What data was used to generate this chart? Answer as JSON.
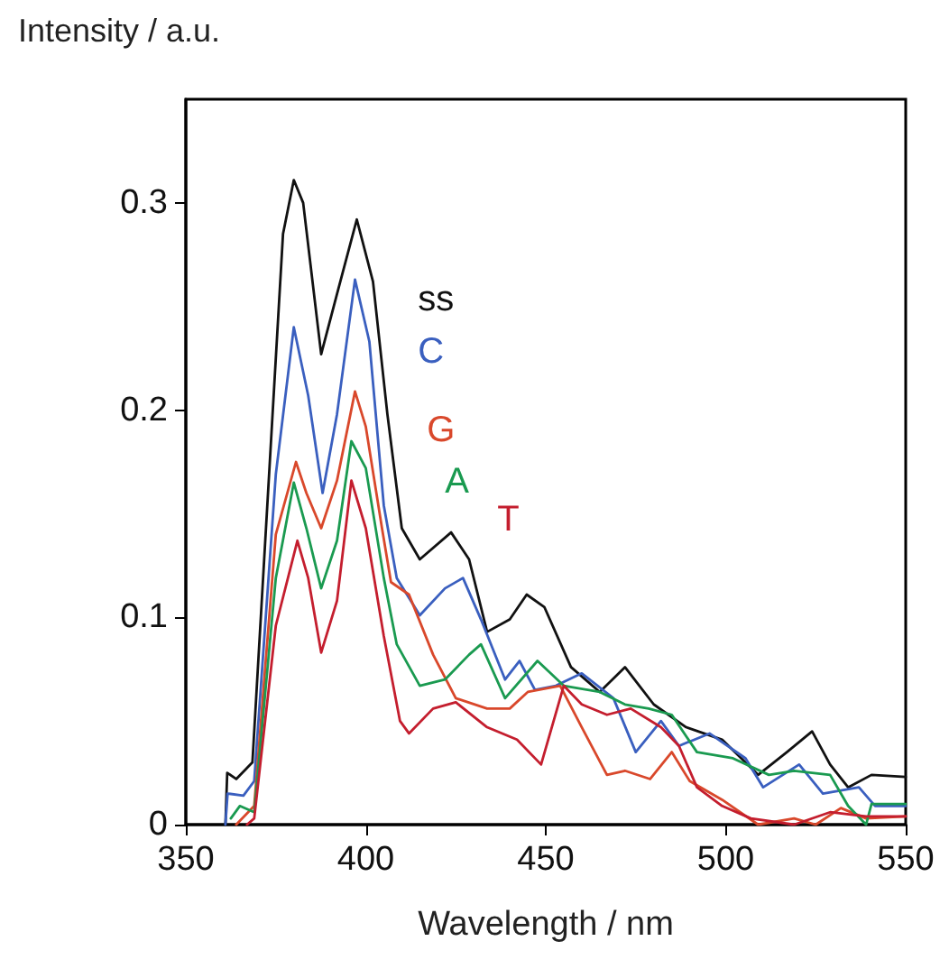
{
  "chart_data": {
    "type": "line",
    "xlabel": "Wavelength / nm",
    "ylabel": "Intensity / a.u.",
    "xlim": [
      350,
      550
    ],
    "xticks": [
      350,
      400,
      450,
      500,
      550
    ],
    "ylim": [
      0,
      0.35
    ],
    "yticks": [
      0,
      0.1,
      0.2,
      0.3
    ],
    "grid": false,
    "legend": false,
    "marker": "none",
    "line_style": "solid",
    "series": [
      {
        "name": "ss",
        "color": "#111111",
        "x": [
          361,
          361.5,
          364,
          368.5,
          373.6,
          377,
          380,
          382.6,
          387.6,
          392,
          397.5,
          402,
          406,
          410,
          415,
          423.7,
          428.7,
          433.7,
          440,
          444.7,
          449.6,
          457,
          465,
          472,
          480,
          489,
          499,
          509,
          517,
          524,
          529,
          534,
          540.5,
          550
        ],
        "values": [
          0,
          0.025,
          0.022,
          0.03,
          0.183,
          0.285,
          0.311,
          0.3,
          0.227,
          0.256,
          0.292,
          0.262,
          0.198,
          0.143,
          0.128,
          0.141,
          0.128,
          0.093,
          0.099,
          0.111,
          0.105,
          0.076,
          0.064,
          0.076,
          0.058,
          0.047,
          0.041,
          0.024,
          0.035,
          0.045,
          0.029,
          0.018,
          0.024,
          0.023
        ]
      },
      {
        "name": "C",
        "color": "#3a5fbf",
        "x": [
          361,
          361.6,
          366,
          369,
          375,
          380,
          384,
          388,
          392,
          397,
          401,
          405,
          408.6,
          415,
          422,
          427,
          432,
          438.7,
          442.7,
          447,
          452.8,
          460,
          468.8,
          475,
          482,
          487,
          495.5,
          505.5,
          510.4,
          520.4,
          527,
          537,
          541.5,
          550
        ],
        "values": [
          0,
          0.015,
          0.014,
          0.021,
          0.169,
          0.24,
          0.207,
          0.16,
          0.198,
          0.263,
          0.233,
          0.154,
          0.119,
          0.101,
          0.114,
          0.119,
          0.099,
          0.07,
          0.079,
          0.065,
          0.067,
          0.073,
          0.061,
          0.035,
          0.05,
          0.038,
          0.044,
          0.032,
          0.018,
          0.029,
          0.015,
          0.018,
          0.009,
          0.009
        ]
      },
      {
        "name": "G",
        "color": "#d9482b",
        "x": [
          364,
          369,
          375,
          380.6,
          383.5,
          387.6,
          392,
          397,
          400,
          404.5,
          407,
          412,
          418.7,
          425,
          433.7,
          440,
          445,
          454,
          460,
          467,
          472,
          479,
          485,
          490,
          499,
          509,
          519,
          525,
          532,
          539,
          550
        ],
        "values": [
          0,
          0.009,
          0.14,
          0.175,
          0.16,
          0.143,
          0.166,
          0.209,
          0.192,
          0.143,
          0.117,
          0.111,
          0.082,
          0.061,
          0.056,
          0.056,
          0.064,
          0.067,
          0.047,
          0.024,
          0.026,
          0.022,
          0.035,
          0.021,
          0.012,
          0,
          0.003,
          0,
          0.008,
          0.003,
          0.004
        ]
      },
      {
        "name": "A",
        "color": "#1a9a50",
        "x": [
          362.5,
          365,
          369,
          375,
          380,
          383.5,
          387.6,
          392,
          396,
          400,
          405,
          408.6,
          415,
          422,
          428.7,
          432,
          438.7,
          447.7,
          455,
          465,
          472,
          478.6,
          485,
          492,
          502,
          512,
          519,
          529,
          534,
          539,
          540.5,
          550
        ],
        "values": [
          0.003,
          0.009,
          0.006,
          0.119,
          0.165,
          0.143,
          0.114,
          0.137,
          0.185,
          0.172,
          0.119,
          0.087,
          0.067,
          0.07,
          0.082,
          0.087,
          0.061,
          0.079,
          0.067,
          0.064,
          0.058,
          0.056,
          0.053,
          0.035,
          0.032,
          0.024,
          0.026,
          0.024,
          0.009,
          0,
          0.01,
          0.01
        ]
      },
      {
        "name": "T",
        "color": "#c41e2e",
        "x": [
          367,
          369,
          375,
          381,
          384,
          387.6,
          392,
          396,
          400,
          405,
          409.5,
          412,
          418.7,
          425,
          433.7,
          442,
          448.7,
          455,
          460,
          467,
          473.6,
          482,
          487,
          492,
          499,
          507,
          519,
          529,
          539,
          550
        ],
        "values": [
          0,
          0.003,
          0.096,
          0.137,
          0.119,
          0.083,
          0.108,
          0.166,
          0.143,
          0.091,
          0.05,
          0.044,
          0.056,
          0.059,
          0.047,
          0.041,
          0.029,
          0.067,
          0.058,
          0.053,
          0.056,
          0.047,
          0.038,
          0.018,
          0.009,
          0.003,
          0,
          0.006,
          0.004,
          0.004
        ]
      }
    ]
  }
}
